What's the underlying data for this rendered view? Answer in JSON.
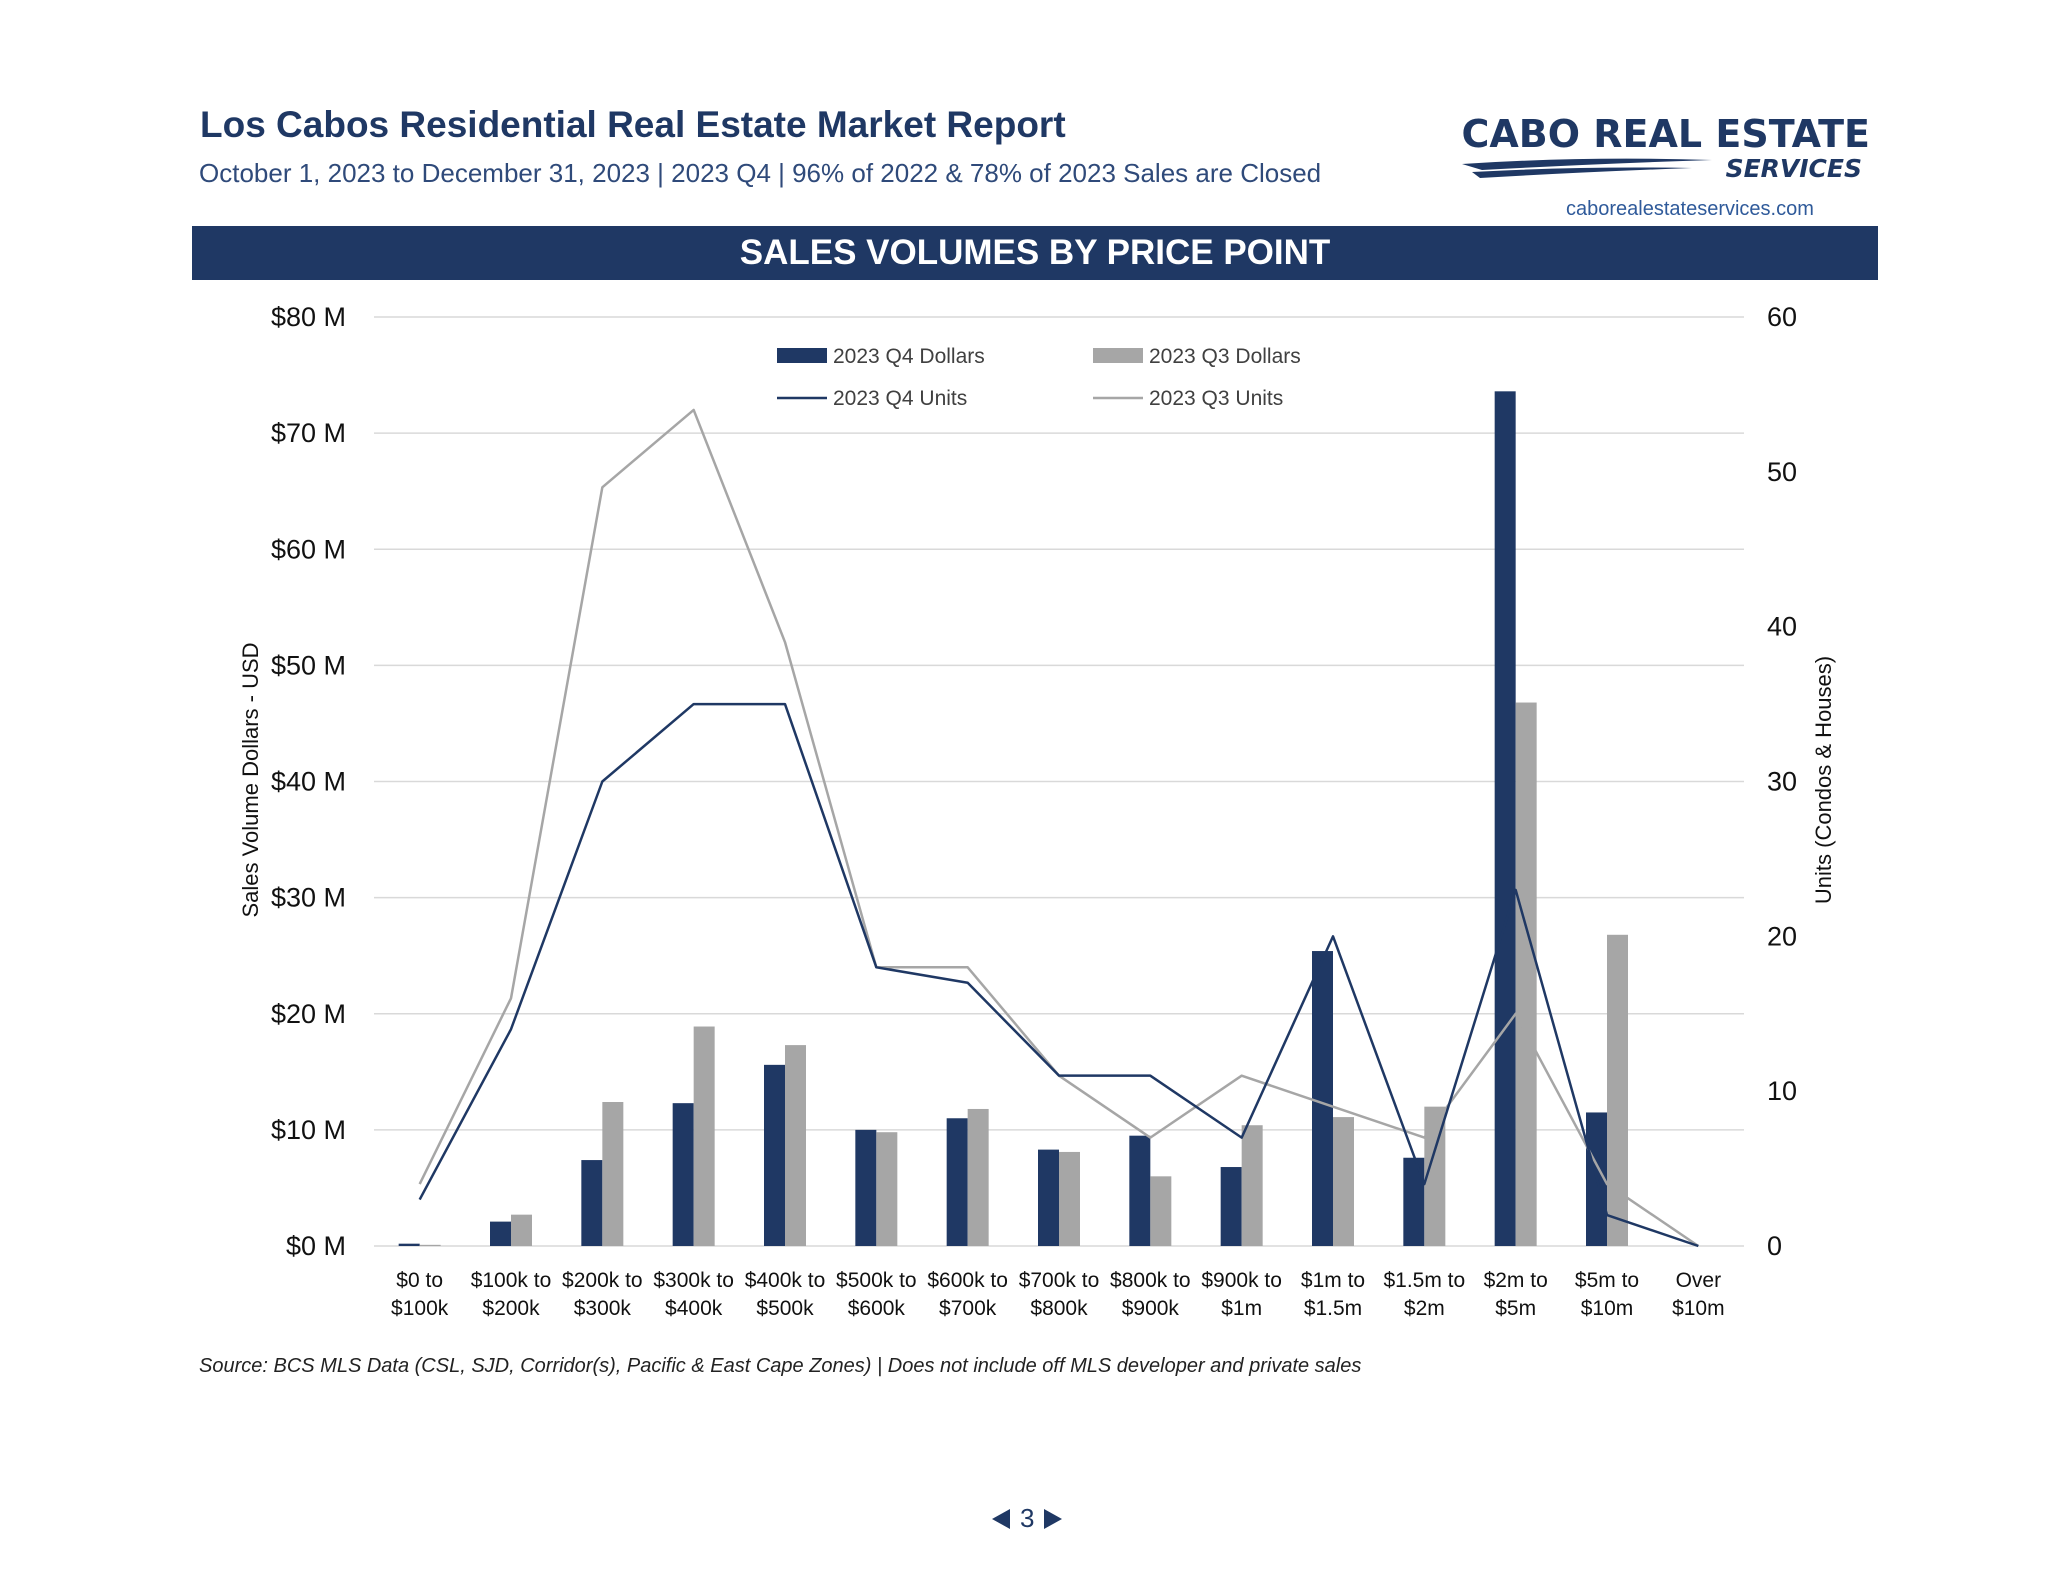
{
  "header": {
    "title": "Los Cabos Residential Real Estate Market Report",
    "subtitle": "October 1, 2023 to December 31, 2023 | 2023 Q4 | 96% of 2022 & 78% of 2023 Sales are Closed",
    "logo_line1": "CABO REAL ESTATE",
    "logo_line2": "SERVICES",
    "website": "caborealestateservices.com"
  },
  "banner": {
    "title": "SALES VOLUMES BY PRICE POINT"
  },
  "footer": {
    "source": "Source:  BCS MLS Data (CSL, SJD, Corridor(s), Pacific & East Cape Zones) | Does not include off MLS developer and private sales",
    "page_number": "3"
  },
  "colors": {
    "navy": "#1f3864",
    "gray": "#a6a6a6",
    "grid": "#d9d9d9"
  },
  "chart_data": {
    "type": "bar",
    "categories": [
      [
        "$0 to",
        "$100k"
      ],
      [
        "$100k to",
        "$200k"
      ],
      [
        "$200k to",
        "$300k"
      ],
      [
        "$300k to",
        "$400k"
      ],
      [
        "$400k to",
        "$500k"
      ],
      [
        "$500k to",
        "$600k"
      ],
      [
        "$600k to",
        "$700k"
      ],
      [
        "$700k to",
        "$800k"
      ],
      [
        "$800k to",
        "$900k"
      ],
      [
        "$900k to",
        "$1m"
      ],
      [
        "$1m to",
        "$1.5m"
      ],
      [
        "$1.5m to",
        "$2m"
      ],
      [
        "$2m to",
        "$5m"
      ],
      [
        "$5m to",
        "$10m"
      ],
      [
        "Over",
        "$10m"
      ]
    ],
    "ylabel": "Sales Volume Dollars - USD",
    "y2label": "Units (Condos & Houses)",
    "ylim": [
      0,
      80
    ],
    "y2lim": [
      0,
      60
    ],
    "yticks": [
      "$0 M",
      "$10 M",
      "$20 M",
      "$30 M",
      "$40 M",
      "$50 M",
      "$60 M",
      "$70 M",
      "$80 M"
    ],
    "y2ticks": [
      "0",
      "10",
      "20",
      "30",
      "40",
      "50",
      "60"
    ],
    "grid": true,
    "legend_position": "top-center",
    "bar_series": [
      {
        "name": "2023 Q4 Dollars",
        "color": "#1f3864",
        "values": [
          0.2,
          2.1,
          7.4,
          12.3,
          15.6,
          10.0,
          11.0,
          8.3,
          9.5,
          6.8,
          25.4,
          7.6,
          73.6,
          11.5,
          0
        ]
      },
      {
        "name": "2023 Q3 Dollars",
        "color": "#a6a6a6",
        "values": [
          0.1,
          2.7,
          12.4,
          18.9,
          17.3,
          9.8,
          11.8,
          8.1,
          6.0,
          10.4,
          11.1,
          12.0,
          46.8,
          26.8,
          0
        ]
      }
    ],
    "line_series": [
      {
        "name": "2023 Q4 Units",
        "color": "#1f3864",
        "values": [
          3,
          14,
          30,
          35,
          35,
          18,
          17,
          11,
          11,
          7,
          20,
          4,
          23,
          2,
          0
        ]
      },
      {
        "name": "2023 Q3 Units",
        "color": "#a6a6a6",
        "values": [
          4,
          16,
          49,
          54,
          39,
          18,
          18,
          11,
          7,
          11,
          9,
          7,
          15,
          4,
          0
        ]
      }
    ]
  }
}
